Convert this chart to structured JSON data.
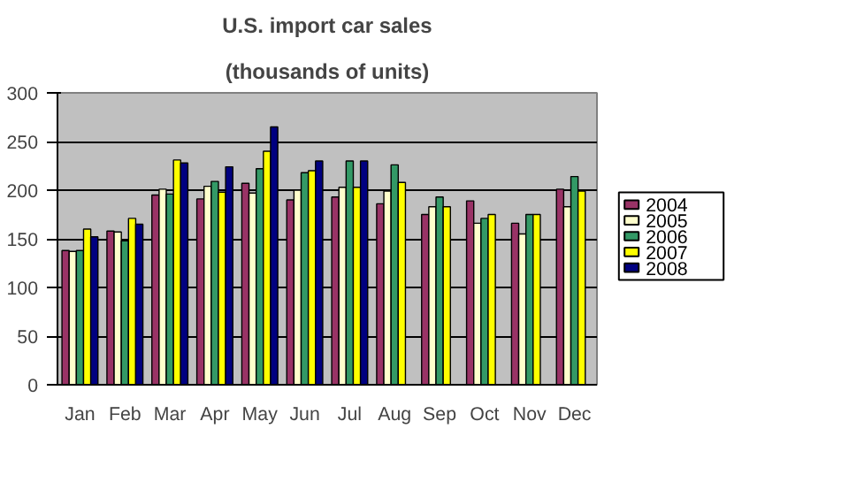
{
  "chart_data": {
    "type": "bar",
    "title": "U.S. import car sales",
    "subtitle": "(thousands of units)",
    "categories": [
      "Jan",
      "Feb",
      "Mar",
      "Apr",
      "May",
      "Jun",
      "Jul",
      "Aug",
      "Sep",
      "Oct",
      "Nov",
      "Dec"
    ],
    "series": [
      {
        "name": "2004",
        "color": "#993366",
        "values": [
          138,
          158,
          195,
          191,
          207,
          190,
          193,
          186,
          175,
          189,
          166,
          201
        ]
      },
      {
        "name": "2005",
        "color": "#ffffcc",
        "values": [
          137,
          157,
          201,
          204,
          197,
          200,
          203,
          199,
          183,
          166,
          155,
          183
        ]
      },
      {
        "name": "2006",
        "color": "#339966",
        "values": [
          138,
          148,
          196,
          209,
          222,
          218,
          230,
          226,
          193,
          171,
          175,
          214
        ]
      },
      {
        "name": "2007",
        "color": "#ffff00",
        "values": [
          160,
          171,
          231,
          198,
          240,
          220,
          203,
          208,
          183,
          175,
          175,
          199
        ]
      },
      {
        "name": "2008",
        "color": "#000080",
        "values": [
          152,
          165,
          228,
          224,
          265,
          230,
          230,
          null,
          null,
          null,
          null,
          null
        ]
      }
    ],
    "ylim": [
      0,
      300
    ],
    "yticks": [
      0,
      50,
      100,
      150,
      200,
      250,
      300
    ],
    "grid": "y",
    "legend": "right"
  }
}
